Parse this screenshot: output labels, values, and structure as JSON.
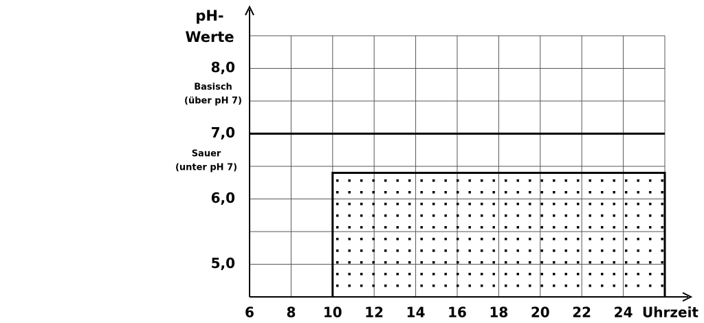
{
  "chart_data": {
    "type": "area",
    "ylabel": [
      "pH-",
      "Werte"
    ],
    "xlabel": "Uhrzeit",
    "x": [
      10,
      26
    ],
    "values": [
      6.4,
      6.4
    ],
    "color": "#000000",
    "reference_line": 7.0,
    "annotations_upper": [
      "Basisch",
      "(über pH 7)"
    ],
    "annotations_lower": [
      "Sauer",
      "(unter pH 7)"
    ],
    "xlim": [
      6,
      26
    ],
    "ylim": [
      4.5,
      8.5
    ],
    "xticks": [
      6,
      8,
      10,
      12,
      14,
      16,
      18,
      20,
      22,
      24
    ],
    "yticks": [
      {
        "value": 5,
        "label": "5,0"
      },
      {
        "value": 6,
        "label": "6,0"
      },
      {
        "value": 7,
        "label": "7,0"
      },
      {
        "value": 8,
        "label": "8,0"
      }
    ],
    "yminor": [
      5.5,
      6.5,
      7.5
    ],
    "grid": true
  }
}
